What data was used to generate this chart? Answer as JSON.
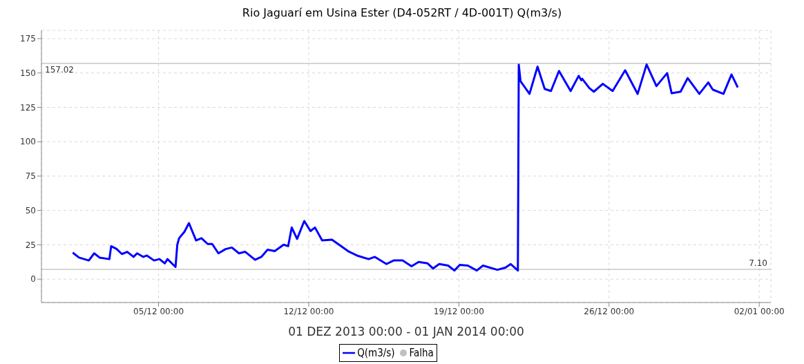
{
  "chart_data": {
    "type": "line",
    "title": "Rio Jaguarí em Usina Ester (D4-052RT / 4D-001T) Q(m3/s)",
    "xlabel": "01 DEZ 2013 00:00 - 01 JAN 2014 00:00",
    "x": [
      "2013-12-01T00:00",
      "2013-12-01T07:00",
      "2013-12-01T18:00",
      "2013-12-02T00:00",
      "2013-12-02T06:00",
      "2013-12-02T17:00",
      "2013-12-02T19:00",
      "2013-12-03T01:00",
      "2013-12-03T07:00",
      "2013-12-03T13:00",
      "2013-12-03T20:00",
      "2013-12-04T00:00",
      "2013-12-04T07:00",
      "2013-12-04T11:00",
      "2013-12-04T19:00",
      "2013-12-05T01:00",
      "2013-12-05T07:00",
      "2013-12-05T10:00",
      "2013-12-05T19:00",
      "2013-12-05T21:00",
      "2013-12-05T23:00",
      "2013-12-06T05:00",
      "2013-12-06T10:00",
      "2013-12-06T18:00",
      "2013-12-07T00:00",
      "2013-12-07T07:00",
      "2013-12-07T12:00",
      "2013-12-07T19:00",
      "2013-12-08T03:00",
      "2013-12-08T10:00",
      "2013-12-08T18:00",
      "2013-12-09T01:00",
      "2013-12-09T12:00",
      "2013-12-09T19:00",
      "2013-12-10T02:00",
      "2013-12-10T10:00",
      "2013-12-10T20:00",
      "2013-12-11T01:00",
      "2013-12-11T05:00",
      "2013-12-11T11:00",
      "2013-12-11T19:00",
      "2013-12-12T02:00",
      "2013-12-12T07:00",
      "2013-12-12T15:00",
      "2013-12-13T02:00",
      "2013-12-13T20:00",
      "2013-12-14T06:00",
      "2013-12-14T19:00",
      "2013-12-15T02:00",
      "2013-12-15T15:00",
      "2013-12-15T23:00",
      "2013-12-16T09:00",
      "2013-12-16T19:00",
      "2013-12-17T03:00",
      "2013-12-17T13:00",
      "2013-12-17T19:00",
      "2013-12-18T02:00",
      "2013-12-18T12:00",
      "2013-12-18T19:00",
      "2013-12-19T01:00",
      "2013-12-19T10:00",
      "2013-12-19T20:00",
      "2013-12-20T03:00",
      "2013-12-20T19:00",
      "2013-12-21T04:00",
      "2013-12-21T10:00",
      "2013-12-21T18:00",
      "2013-12-21T19:00",
      "2013-12-21T21:00",
      "2013-12-22T07:00",
      "2013-12-22T16:00",
      "2013-12-23T00:00",
      "2013-12-23T07:00",
      "2013-12-23T16:00",
      "2013-12-24T05:00",
      "2013-12-24T14:00",
      "2013-12-24T17:00",
      "2013-12-24T18:00",
      "2013-12-25T02:00",
      "2013-12-25T07:00",
      "2013-12-25T17:00",
      "2013-12-26T04:00",
      "2013-12-26T18:00",
      "2013-12-27T08:00",
      "2013-12-27T18:00",
      "2013-12-28T05:00",
      "2013-12-28T17:00",
      "2013-12-28T22:00",
      "2013-12-29T08:00",
      "2013-12-29T16:00",
      "2013-12-30T05:00",
      "2013-12-30T15:00",
      "2013-12-30T20:00",
      "2013-12-31T08:00",
      "2013-12-31T17:00",
      "2014-01-01T00:00"
    ],
    "series": [
      {
        "name": "Q(m3/s)",
        "color": "#0000ff",
        "values": [
          19.3,
          15.7,
          13.6,
          18.8,
          15.7,
          14.6,
          24,
          22,
          18.3,
          19.9,
          16.2,
          18.8,
          16.2,
          17.2,
          13.6,
          14.6,
          11.5,
          14.6,
          8.9,
          25.1,
          29.8,
          34.5,
          40.8,
          28.2,
          29.8,
          25.6,
          25.6,
          18.8,
          21.9,
          23,
          18.8,
          19.9,
          14.1,
          16.2,
          21.4,
          20.4,
          25.1,
          24,
          37.6,
          29.3,
          42.3,
          35,
          37.6,
          28.2,
          28.7,
          20.4,
          17.2,
          14.6,
          16.2,
          11,
          13.6,
          13.6,
          9.4,
          12.5,
          11.5,
          7.8,
          11,
          9.9,
          6.3,
          10.4,
          9.9,
          6.3,
          9.9,
          6.8,
          8.4,
          11,
          6.3,
          156,
          144,
          134.8,
          154.6,
          138.4,
          136.9,
          151.5,
          136.9,
          147.9,
          144.7,
          145.8,
          139,
          136.4,
          142.1,
          136.9,
          152,
          134.8,
          156.2,
          140.5,
          149.9,
          135.3,
          136.4,
          146.3,
          134.8,
          143.1,
          137.9,
          134.8,
          148.9,
          139.5
        ]
      },
      {
        "name": "Falha",
        "type": "scatter",
        "color": "#c0c0c0",
        "values": [
          null,
          null,
          null,
          null,
          null,
          null,
          null,
          null,
          null,
          null,
          null,
          null,
          null,
          null,
          null,
          null,
          null,
          null,
          null,
          null,
          null,
          null,
          null,
          null,
          null,
          null,
          null,
          null,
          null,
          null,
          null,
          null,
          null,
          null,
          null,
          null,
          null,
          null,
          null,
          null,
          null,
          null,
          null,
          null,
          null,
          null,
          null,
          null,
          null,
          null,
          null,
          null,
          null,
          null,
          null,
          null,
          null,
          null,
          null,
          null,
          null,
          null,
          null,
          null,
          null,
          null,
          null,
          null,
          null,
          null,
          null,
          null,
          null,
          null,
          null,
          null,
          null,
          null,
          null,
          null,
          null,
          null,
          null,
          null,
          null,
          null,
          null,
          null,
          null,
          null,
          null,
          null,
          null,
          null,
          null,
          null
        ]
      }
    ],
    "xlim": [
      "2013-11-29T13:00",
      "2014-01-02T13:00"
    ],
    "xticks": [
      {
        "value": "2013-12-05",
        "label": "05/12 00:00"
      },
      {
        "value": "2013-12-12",
        "label": "12/12 00:00"
      },
      {
        "value": "2013-12-19",
        "label": "19/12 00:00"
      },
      {
        "value": "2013-12-26",
        "label": "26/12 00:00"
      },
      {
        "value": "2014-01-02",
        "label": "02/01 00:00"
      }
    ],
    "ylim": [
      -17,
      181
    ],
    "yticks": [
      0,
      25,
      50,
      75,
      100,
      125,
      150,
      175
    ],
    "ref_lines": [
      {
        "axis": "y",
        "value": 157.02,
        "label": "157.02",
        "color": "#c8c8c8"
      },
      {
        "axis": "y",
        "value": 7.1,
        "label": "7.10",
        "color": "#c8c8c8"
      }
    ],
    "grid": true,
    "legend": "bottom",
    "marker": "none",
    "line_style": "solid"
  }
}
